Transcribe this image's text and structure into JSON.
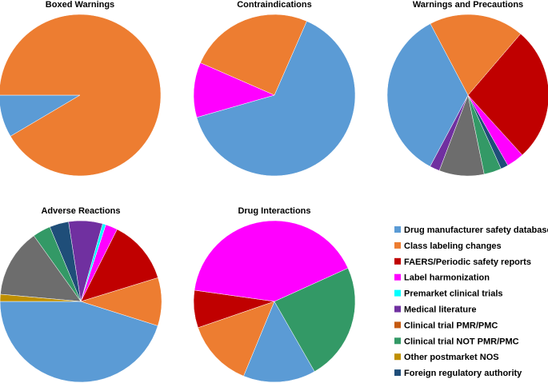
{
  "colors": {
    "Drug manufacturer safety database": "#5b9bd5",
    "Class labeling changes": "#ed7d31",
    "FAERS/Periodic safety reports": "#c00000",
    "Label harmonization": "#ff00ff",
    "Premarket clinical trials": "#00ffff",
    "Medical literature": "#7030a0",
    "Clinical trial PMR/PMC": "#c55a11",
    "Clinical trial NOT PMR/PMC": "#339966",
    "Other postmarket NOS": "#bf8f00",
    "Foreign regulatory authority": "#1f4e79",
    "Other": "#6d6d6d"
  },
  "legend": [
    "Drug manufacturer safety database",
    "Class labeling changes",
    "FAERS/Periodic safety reports",
    "Label harmonization",
    "Premarket clinical trials",
    "Medical literature",
    "Clinical trial PMR/PMC",
    "Clinical trial NOT PMR/PMC",
    "Other postmarket NOS",
    "Foreign regulatory authority"
  ],
  "chart_data": [
    {
      "type": "pie",
      "title": "Boxed Warnings",
      "start_angle_deg": 180,
      "direction": "counterclockwise",
      "slices": [
        {
          "label": "Drug manufacturer safety database",
          "value": 8.5
        },
        {
          "label": "Class labeling changes",
          "value": 91.5
        }
      ]
    },
    {
      "type": "pie",
      "title": "Contraindications",
      "start_angle_deg": 196,
      "direction": "counterclockwise",
      "slices": [
        {
          "label": "Drug manufacturer safety database",
          "value": 64
        },
        {
          "label": "Class labeling changes",
          "value": 25
        },
        {
          "label": "Label harmonization",
          "value": 11
        }
      ]
    },
    {
      "type": "pie",
      "title": "Warnings and Precautions",
      "start_angle_deg": 242,
      "direction": "counterclockwise",
      "slices": [
        {
          "label": "Medical literature",
          "value": 2
        },
        {
          "label": "Other",
          "value": 9
        },
        {
          "label": "Clinical trial NOT PMR/PMC",
          "value": 3.5
        },
        {
          "label": "Foreign regulatory authority",
          "value": 1.5
        },
        {
          "label": "Label harmonization",
          "value": 3.5
        },
        {
          "label": "FAERS/Periodic safety reports",
          "value": 27
        },
        {
          "label": "Class labeling changes",
          "value": 19
        },
        {
          "label": "Drug manufacturer safety database",
          "value": 34.5
        }
      ]
    },
    {
      "type": "pie",
      "title": "Adverse Reactions",
      "start_angle_deg": 180,
      "direction": "counterclockwise",
      "slices": [
        {
          "label": "Drug manufacturer safety database",
          "value": 41.2
        },
        {
          "label": "Class labeling changes",
          "value": 8.8
        },
        {
          "label": "FAERS/Periodic safety reports",
          "value": 11.7
        },
        {
          "label": "Label harmonization",
          "value": 2.2
        },
        {
          "label": "Premarket clinical trials",
          "value": 0.6
        },
        {
          "label": "Medical literature",
          "value": 6.2
        },
        {
          "label": "Foreign regulatory authority",
          "value": 3.5
        },
        {
          "label": "Clinical trial NOT PMR/PMC",
          "value": 3.3
        },
        {
          "label": "Other",
          "value": 12.5
        },
        {
          "label": "Other postmarket NOS",
          "value": 1.3
        }
      ]
    },
    {
      "type": "pie",
      "title": "Drug Interactions",
      "start_angle_deg": 172,
      "direction": "counterclockwise",
      "slices": [
        {
          "label": "FAERS/Periodic safety reports",
          "value": 7.5
        },
        {
          "label": "Class labeling changes",
          "value": 13.5
        },
        {
          "label": "Drug manufacturer safety database",
          "value": 14.5
        },
        {
          "label": "Clinical trial NOT PMR/PMC",
          "value": 23.5
        },
        {
          "label": "Label harmonization",
          "value": 41
        }
      ]
    }
  ]
}
